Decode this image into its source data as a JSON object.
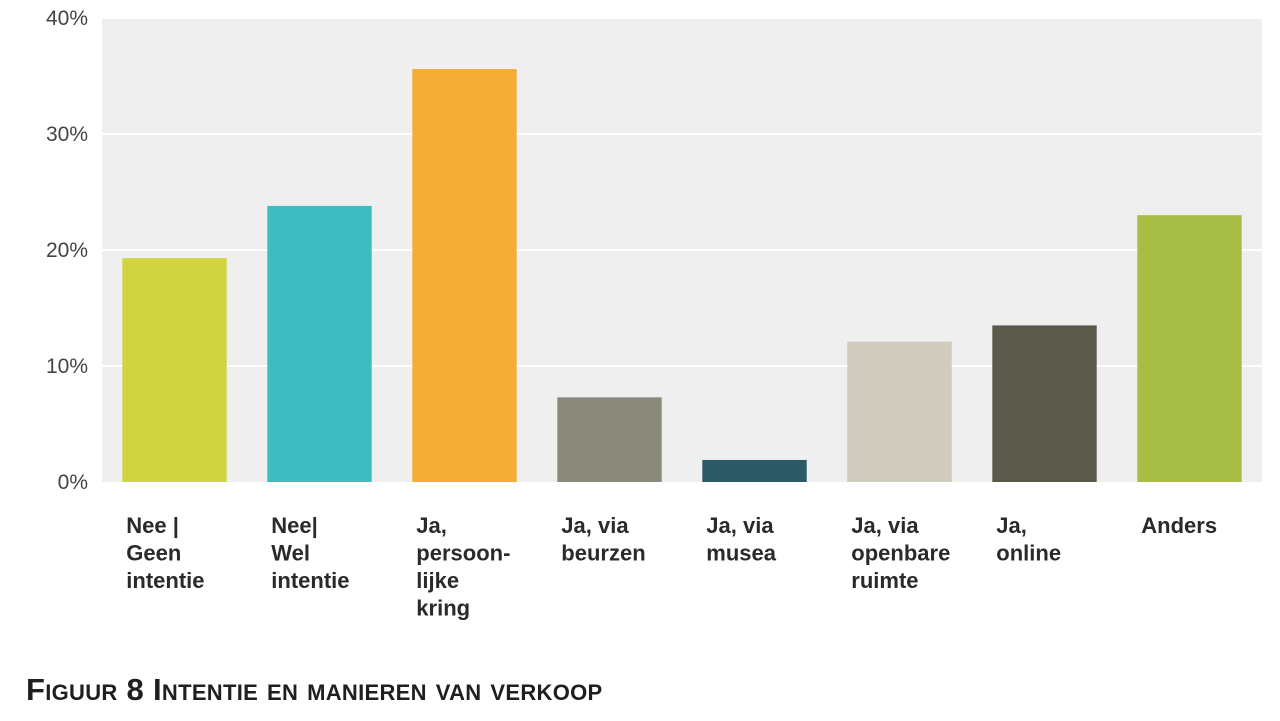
{
  "caption": "Figuur 8 Intentie en manieren van verkoop",
  "chart_data": {
    "type": "bar",
    "title": "",
    "xlabel": "",
    "ylabel": "",
    "ylim": [
      0,
      40
    ],
    "yticks": [
      "0%",
      "10%",
      "20%",
      "30%",
      "40%"
    ],
    "ytick_values": [
      0,
      10,
      20,
      30,
      40
    ],
    "grid": true,
    "legend": "none",
    "categories": [
      [
        "Nee |",
        "Geen",
        "intentie"
      ],
      [
        "Nee|",
        "Wel",
        "intentie"
      ],
      [
        "Ja,",
        "persoon-",
        "lijke",
        "kring"
      ],
      [
        "Ja, via",
        "beurzen"
      ],
      [
        "Ja, via",
        "musea"
      ],
      [
        "Ja, via",
        "openbare",
        "ruimte"
      ],
      [
        "Ja,",
        "online"
      ],
      [
        "Anders"
      ]
    ],
    "values": [
      19.3,
      23.8,
      35.6,
      7.3,
      1.9,
      12.1,
      13.5,
      23.0
    ],
    "colors": [
      "#cfd440",
      "#3dbdbf",
      "#f4ac34",
      "#8a8a7a",
      "#2b5a66",
      "#cfcbbd",
      "#5b5a4a",
      "#a8bd45"
    ],
    "plot_background": "#efefef",
    "gridline_color": "#ffffff"
  }
}
